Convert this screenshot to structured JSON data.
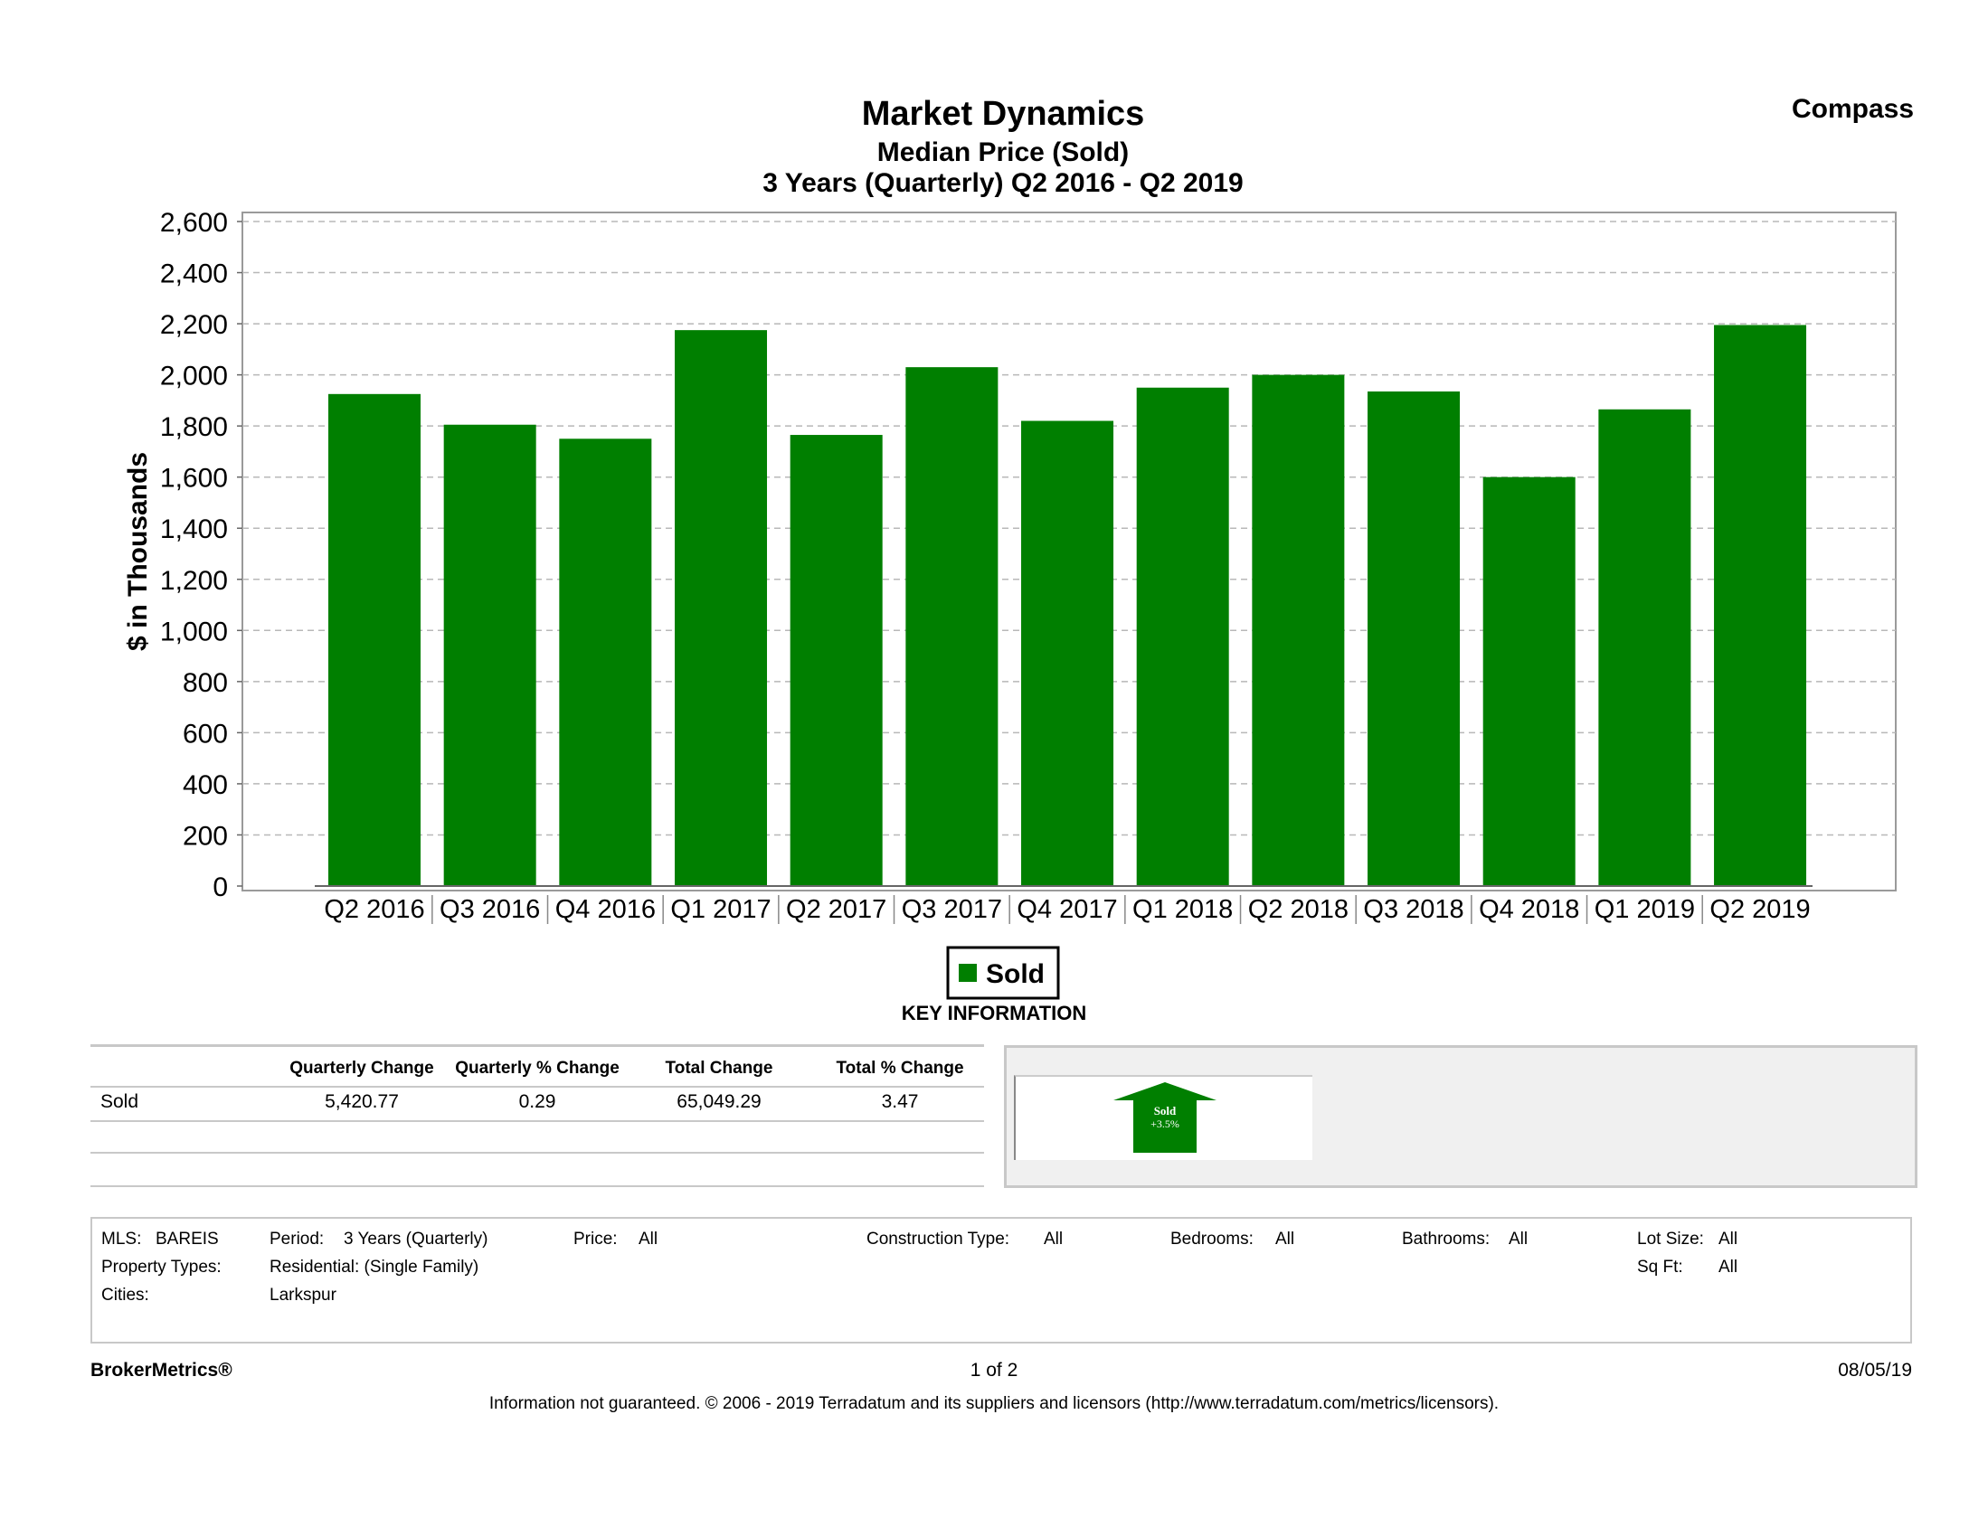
{
  "header": {
    "brand": "Compass"
  },
  "chart_data": {
    "type": "bar",
    "title": "Market Dynamics",
    "subtitle": "Median Price (Sold)",
    "subtitle2": "3 Years (Quarterly) Q2 2016 - Q2 2019",
    "xlabel": "",
    "ylabel": "$ in Thousands",
    "ylim": [
      0,
      2600
    ],
    "yticks": [
      0,
      200,
      400,
      600,
      800,
      1000,
      1200,
      1400,
      1600,
      1800,
      2000,
      2200,
      2400,
      2600
    ],
    "ytick_labels": [
      "0",
      "200",
      "400",
      "600",
      "800",
      "1,000",
      "1,200",
      "1,400",
      "1,600",
      "1,800",
      "2,000",
      "2,200",
      "2,400",
      "2,600"
    ],
    "grid": true,
    "categories": [
      "Q2 2016",
      "Q3 2016",
      "Q4 2016",
      "Q1 2017",
      "Q2 2017",
      "Q3 2017",
      "Q4 2017",
      "Q1 2018",
      "Q2 2018",
      "Q3 2018",
      "Q4 2018",
      "Q1 2019",
      "Q2 2019"
    ],
    "series": [
      {
        "name": "Sold",
        "color": "#007f00",
        "values": [
          1925,
          1805,
          1750,
          2175,
          1765,
          2030,
          1820,
          1950,
          2000,
          1935,
          1600,
          1865,
          2195
        ]
      }
    ],
    "legend": {
      "position": "bottom-center",
      "label": "Sold"
    }
  },
  "key_information": {
    "title": "KEY INFORMATION",
    "headers": [
      "Quarterly Change",
      "Quarterly % Change",
      "Total Change",
      "Total % Change"
    ],
    "rows": [
      {
        "label": "Sold",
        "values": [
          "5,420.77",
          "0.29",
          "65,049.29",
          "3.47"
        ]
      }
    ],
    "indicator": {
      "line1": "Sold",
      "line2": "+3.5%",
      "color": "#007f00"
    }
  },
  "filters": {
    "mls_label": "MLS:",
    "mls_value": "BAREIS",
    "period_label": "Period:",
    "period_value": "3 Years (Quarterly)",
    "price_label": "Price:",
    "price_value": "All",
    "construction_label": "Construction Type:",
    "construction_value": "All",
    "bedrooms_label": "Bedrooms:",
    "bedrooms_value": "All",
    "bathrooms_label": "Bathrooms:",
    "bathrooms_value": "All",
    "lotsize_label": "Lot Size:",
    "lotsize_value": "All",
    "property_label": "Property Types:",
    "property_value": "Residential: (Single Family)",
    "sqft_label": "Sq Ft:",
    "sqft_value": "All",
    "cities_label": "Cities:",
    "cities_value": "Larkspur"
  },
  "footer": {
    "brand": "BrokerMetrics®",
    "page": "1 of 2",
    "date": "08/05/19",
    "disclaimer": "Information not guaranteed.  © 2006 - 2019 Terradatum and its suppliers and licensors (http://www.terradatum.com/metrics/licensors)."
  }
}
